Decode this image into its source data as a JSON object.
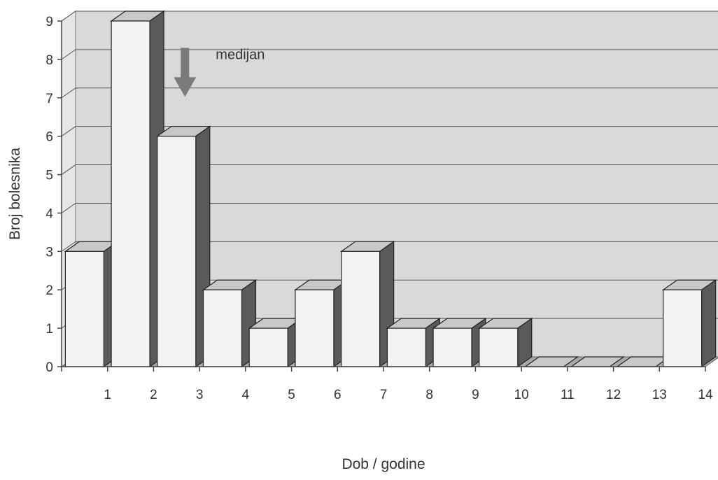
{
  "chart_data": {
    "type": "bar",
    "x": [
      "",
      "1",
      "2",
      "3",
      "4",
      "5",
      "6",
      "7",
      "8",
      "9",
      "10",
      "11",
      "12",
      "13"
    ],
    "values": [
      3,
      9,
      6,
      2,
      1,
      2,
      3,
      1,
      1,
      1,
      0,
      0,
      0,
      2
    ],
    "x_tick_labels": [
      "1",
      "2",
      "3",
      "4",
      "5",
      "6",
      "7",
      "8",
      "9",
      "10",
      "11",
      "12",
      "13",
      "14"
    ],
    "y_ticks": [
      "0",
      "1",
      "2",
      "3",
      "4",
      "5",
      "6",
      "7",
      "8",
      "9"
    ],
    "ylim": [
      0,
      9
    ],
    "xlabel": "Dob / godine",
    "ylabel": "Broj bolesnika",
    "grid": true,
    "annotation": {
      "text": "medijan",
      "category_index": 2
    }
  },
  "colors": {
    "bar_front": "#f2f2f2",
    "bar_top": "#c8c8c8",
    "bar_side": "#5a5a5a",
    "wall": "#d9d9d9",
    "floor": "#a8a8a8",
    "arrow": "#7a7a7a"
  }
}
